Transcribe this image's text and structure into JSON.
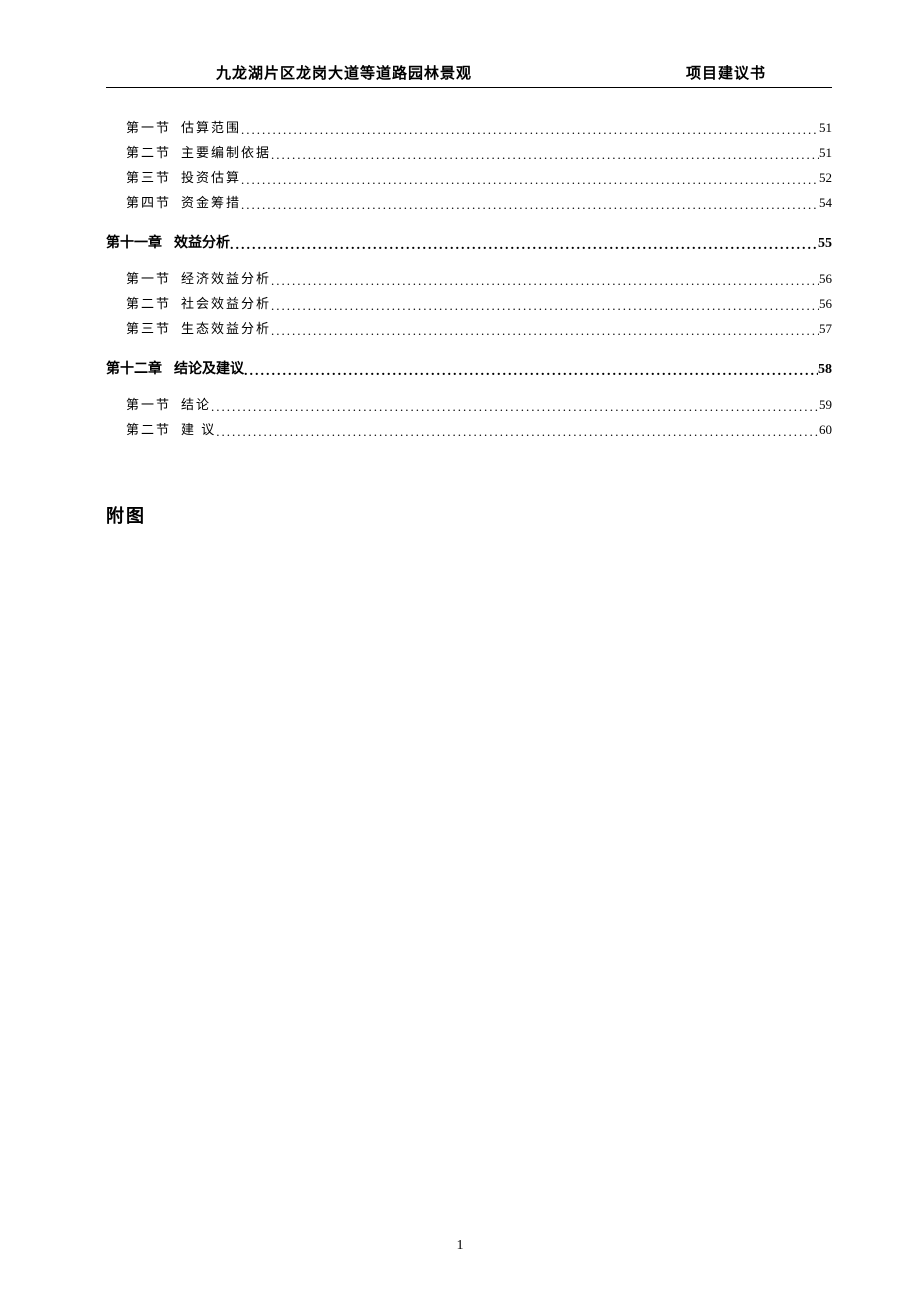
{
  "header": {
    "left": "九龙湖片区龙岗大道等道路园林景观",
    "right": "项目建议书"
  },
  "toc": {
    "group_first": [
      {
        "label": "第一节",
        "title": "估算范围",
        "page": "51"
      },
      {
        "label": "第二节",
        "title": "主要编制依据",
        "page": "51"
      },
      {
        "label": "第三节",
        "title": "投资估算",
        "page": "52"
      },
      {
        "label": "第四节",
        "title": "资金筹措",
        "page": "54"
      }
    ],
    "chapter11": {
      "label": "第十一章",
      "title": "效益分析",
      "page": "55"
    },
    "group11": [
      {
        "label": "第一节",
        "title": "经济效益分析",
        "page": "56"
      },
      {
        "label": "第二节",
        "title": "社会效益分析",
        "page": "56"
      },
      {
        "label": "第三节",
        "title": "生态效益分析",
        "page": "57"
      }
    ],
    "chapter12": {
      "label": "第十二章",
      "title": "结论及建议",
      "page": "58"
    },
    "group12": [
      {
        "label": "第一节",
        "title": "结论",
        "page": "59"
      },
      {
        "label": "第二节",
        "title": "建 议",
        "page": "60"
      }
    ]
  },
  "appendix": "附图",
  "pageNumber": "1"
}
